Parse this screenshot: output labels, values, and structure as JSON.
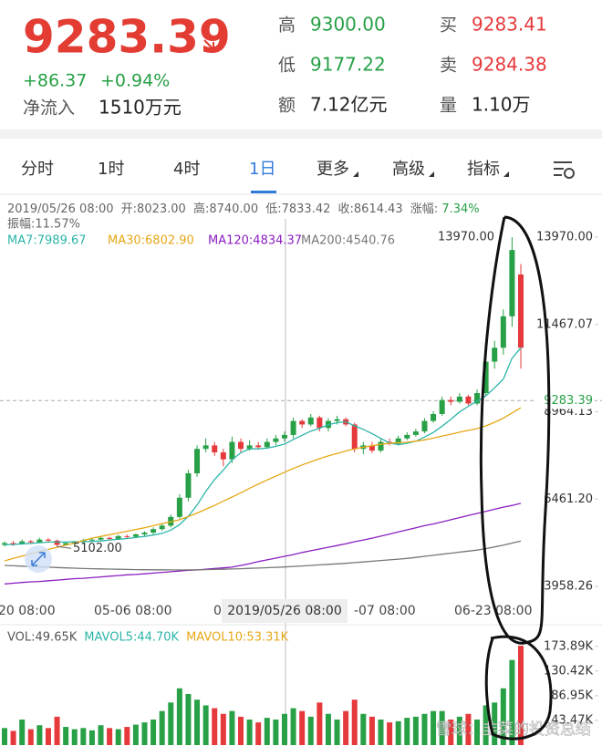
{
  "header": {
    "price": "9283.39",
    "change": "+86.37",
    "change_pct": "+0.94%",
    "netflow_label": "净流入",
    "netflow": "1510万元",
    "stats": [
      {
        "label": "高",
        "value": "9300.00"
      },
      {
        "label": "低",
        "value": "9177.22"
      },
      {
        "label": "额",
        "value": "7.12亿元"
      },
      {
        "label": "买",
        "value": "9283.41"
      },
      {
        "label": "卖",
        "value": "9284.38"
      },
      {
        "label": "量",
        "value": "1.10万"
      }
    ]
  },
  "tabs": [
    "分时",
    "1时",
    "4时",
    "1日",
    "更多",
    "高级",
    "指标"
  ],
  "info": {
    "parts": [
      "2019/05/26 08:00",
      "开:8023.00",
      "高:8740.00",
      "低:7833.42",
      "收:8614.43",
      "涨幅:"
    ],
    "pct": "7.34%",
    "amplitude": "振幅:11.57%"
  },
  "x_labels": [
    "20 08:00",
    "05-06 08:00",
    "0",
    "-07 08:00",
    "06-23 08:00"
  ],
  "crosshair_label": "2019/05/26 08:00",
  "watermark": "雪球：韭菜的投资总结",
  "chart_data": {
    "type": "candlestick",
    "up_color": "#27a046",
    "down_color": "#e5393c",
    "ylim": [
      3514,
      14493
    ],
    "yticks": [
      {
        "value": 13970,
        "label": "13970.00"
      },
      11467.07,
      8964.13,
      {
        "value": 6461.2,
        "label": "6461.20"
      },
      3958.26
    ],
    "current_price": 9283.39,
    "high_label": {
      "value": 13970,
      "label": "13970.00"
    },
    "low_label": {
      "value": 5102,
      "label": "5102.00"
    },
    "open": [
      5150,
      5200,
      5180,
      5250,
      5220,
      5300,
      5270,
      5150,
      5200,
      5230,
      5280,
      5300,
      5350,
      5320,
      5400,
      5380,
      5450,
      5500,
      5600,
      5700,
      5950,
      6500,
      7200,
      7900,
      8000,
      7800,
      7600,
      8100,
      7900,
      8000,
      7950,
      8100,
      8200,
      8300,
      8700,
      8600,
      8800,
      8500,
      8700,
      8750,
      8600,
      7900,
      8000,
      7850,
      8100,
      8050,
      8200,
      8300,
      8400,
      8700,
      8900,
      9300,
      9250,
      9400,
      9200,
      9500,
      10400,
      10800,
      11700,
      12900
    ],
    "high": [
      5250,
      5260,
      5300,
      5290,
      5350,
      5340,
      5300,
      5230,
      5260,
      5320,
      5340,
      5390,
      5380,
      5440,
      5440,
      5480,
      5540,
      5650,
      5760,
      6020,
      6600,
      7300,
      8000,
      8200,
      8100,
      7900,
      8250,
      8200,
      8150,
      8100,
      8200,
      8300,
      8400,
      8800,
      8750,
      8900,
      8850,
      8780,
      8850,
      8800,
      8650,
      8100,
      8100,
      8200,
      8200,
      8280,
      8380,
      8480,
      8780,
      8980,
      9400,
      9400,
      9500,
      9450,
      9600,
      10500,
      11000,
      11900,
      13970,
      13200
    ],
    "low": [
      5100,
      5120,
      5150,
      5180,
      5200,
      5220,
      5102,
      5120,
      5170,
      5200,
      5240,
      5260,
      5280,
      5290,
      5320,
      5340,
      5400,
      5450,
      5550,
      5650,
      5900,
      6400,
      7100,
      7800,
      7700,
      7400,
      7500,
      7800,
      7850,
      7880,
      7900,
      8000,
      8100,
      8200,
      8500,
      8550,
      8400,
      8400,
      8600,
      8550,
      7800,
      7750,
      7780,
      7800,
      8000,
      8000,
      8150,
      8250,
      8350,
      8650,
      8850,
      9150,
      9200,
      9150,
      9150,
      9400,
      10200,
      10600,
      11400,
      10200
    ],
    "close": [
      5200,
      5180,
      5250,
      5220,
      5300,
      5270,
      5150,
      5200,
      5230,
      5280,
      5300,
      5350,
      5320,
      5400,
      5380,
      5450,
      5500,
      5600,
      5700,
      5950,
      6500,
      7200,
      7900,
      8000,
      7800,
      7600,
      8100,
      7900,
      8000,
      7950,
      8100,
      8200,
      8300,
      8700,
      8600,
      8800,
      8500,
      8700,
      8750,
      8600,
      7900,
      8000,
      7850,
      8100,
      8050,
      8200,
      8300,
      8400,
      8700,
      8900,
      9300,
      9250,
      9400,
      9200,
      9500,
      10400,
      10800,
      11700,
      13600,
      10800
    ],
    "ma": [
      {
        "name": "MA7:7989.67",
        "color": "#2bb5a8",
        "values": [
          5150,
          5160,
          5180,
          5190,
          5210,
          5230,
          5230,
          5230,
          5240,
          5240,
          5250,
          5260,
          5290,
          5310,
          5330,
          5360,
          5390,
          5430,
          5480,
          5570,
          5730,
          5970,
          6290,
          6680,
          7020,
          7290,
          7590,
          7790,
          7900,
          7900,
          7920,
          7970,
          8040,
          8170,
          8290,
          8410,
          8490,
          8590,
          8650,
          8680,
          8560,
          8460,
          8340,
          8200,
          8070,
          8020,
          8060,
          8120,
          8240,
          8370,
          8550,
          8750,
          8960,
          9120,
          9270,
          9420,
          9650,
          9900,
          10500,
          10800
        ]
      },
      {
        "name": "MA30:6802.90",
        "color": "#e6a817",
        "values": [
          4690,
          4760,
          4830,
          4900,
          4960,
          5020,
          5080,
          5140,
          5200,
          5270,
          5340,
          5390,
          5440,
          5490,
          5540,
          5590,
          5640,
          5700,
          5760,
          5810,
          5870,
          5960,
          6060,
          6170,
          6280,
          6400,
          6520,
          6640,
          6770,
          6890,
          7010,
          7120,
          7230,
          7340,
          7440,
          7530,
          7620,
          7700,
          7770,
          7840,
          7900,
          7950,
          7990,
          8030,
          8060,
          8080,
          8090,
          8120,
          8160,
          8210,
          8270,
          8320,
          8380,
          8430,
          8480,
          8560,
          8660,
          8780,
          8930,
          9080
        ]
      },
      {
        "name": "MA120:4834.37",
        "color": "#8a1fc0",
        "values": [
          4030,
          4050,
          4070,
          4090,
          4100,
          4120,
          4140,
          4160,
          4180,
          4190,
          4210,
          4230,
          4250,
          4270,
          4290,
          4300,
          4320,
          4340,
          4360,
          4380,
          4400,
          4420,
          4430,
          4450,
          4470,
          4490,
          4510,
          4560,
          4610,
          4670,
          4720,
          4770,
          4820,
          4870,
          4930,
          4980,
          5030,
          5080,
          5130,
          5180,
          5240,
          5290,
          5340,
          5400,
          5460,
          5520,
          5580,
          5640,
          5700,
          5750,
          5810,
          5870,
          5930,
          5990,
          6050,
          6110,
          6170,
          6230,
          6280,
          6340
        ]
      },
      {
        "name": "MA200:4540.76",
        "color": "#777777",
        "values": [
          4560,
          4550,
          4540,
          4530,
          4520,
          4510,
          4500,
          4490,
          4480,
          4470,
          4465,
          4460,
          4455,
          4450,
          4445,
          4440,
          4438,
          4435,
          4433,
          4431,
          4430,
          4432,
          4435,
          4440,
          4445,
          4450,
          4458,
          4466,
          4475,
          4485,
          4495,
          4505,
          4515,
          4530,
          4545,
          4560,
          4575,
          4590,
          4605,
          4620,
          4640,
          4660,
          4680,
          4700,
          4720,
          4740,
          4760,
          4790,
          4820,
          4850,
          4880,
          4910,
          4940,
          4970,
          5000,
          5040,
          5090,
          5140,
          5200,
          5260
        ]
      }
    ],
    "volume": {
      "ylim": [
        0,
        188000
      ],
      "yticks": [
        {
          "value": 173890,
          "label": "173.89K"
        },
        {
          "value": 130420,
          "label": "130.42K"
        },
        {
          "value": 86950,
          "label": "86.95K"
        },
        {
          "value": 43470,
          "label": "43.47K"
        }
      ],
      "legend": [
        {
          "text": "VOL:49.65K",
          "color": "#555555"
        },
        {
          "text": "MAVOL5:44.70K",
          "color": "#2bb5a8"
        },
        {
          "text": "MAVOL10:53.31K",
          "color": "#e6a817"
        }
      ],
      "values": [
        30000,
        25000,
        45000,
        28000,
        35000,
        30000,
        50000,
        32000,
        28000,
        30000,
        26000,
        35000,
        30000,
        28000,
        32000,
        36000,
        40000,
        45000,
        60000,
        75000,
        100000,
        90000,
        80000,
        70000,
        65000,
        55000,
        60000,
        50000,
        45000,
        40000,
        48000,
        45000,
        55000,
        65000,
        60000,
        50000,
        75000,
        55000,
        45000,
        60000,
        80000,
        55000,
        50000,
        45000,
        40000,
        42000,
        48000,
        50000,
        55000,
        60000,
        60000,
        45000,
        50000,
        55000,
        45000,
        70000,
        75000,
        100000,
        150000,
        175000
      ]
    }
  }
}
